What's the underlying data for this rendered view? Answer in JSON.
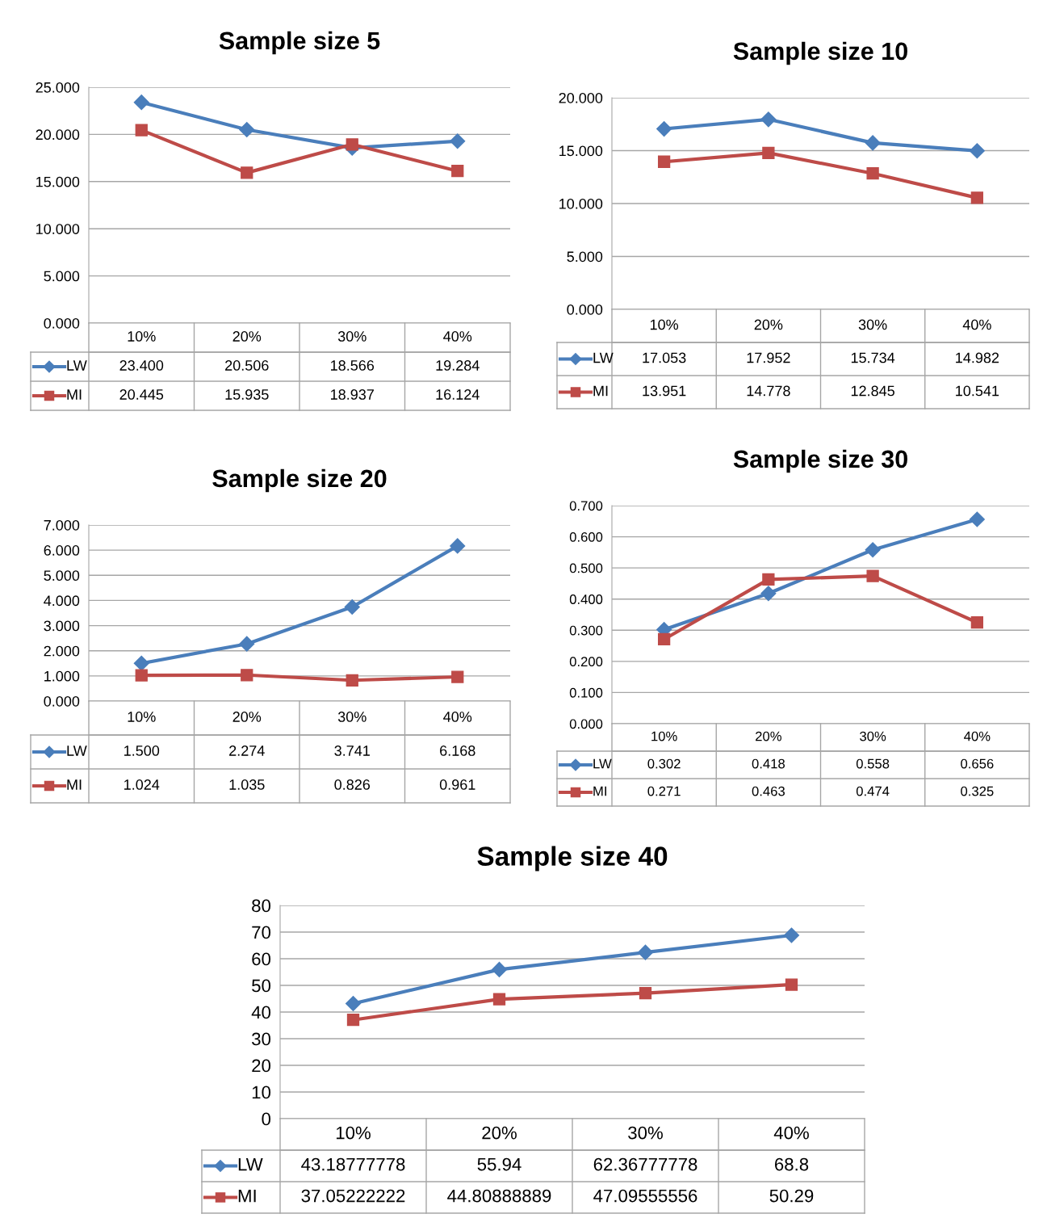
{
  "chart_data": [
    {
      "type": "line",
      "title": "Sample size 5",
      "categories": [
        "10%",
        "20%",
        "30%",
        "40%"
      ],
      "ylim": [
        0,
        25
      ],
      "yticks": [
        {
          "value": 0,
          "label": "0.000"
        },
        {
          "value": 5,
          "label": "5.000"
        },
        {
          "value": 10,
          "label": "10.000"
        },
        {
          "value": 15,
          "label": "15.000"
        },
        {
          "value": 20,
          "label": "20.000"
        },
        {
          "value": 25,
          "label": "25.000"
        }
      ],
      "grid": "y",
      "legend": "bottom",
      "series": [
        {
          "name": "LW",
          "color": "#4a7ebb",
          "marker": "diamond",
          "values": [
            23.4,
            20.506,
            18.566,
            19.284
          ],
          "value_labels": [
            "23.400",
            "20.506",
            "18.566",
            "19.284"
          ]
        },
        {
          "name": "MI",
          "color": "#be4b48",
          "marker": "square",
          "values": [
            20.445,
            15.935,
            18.937,
            16.124
          ],
          "value_labels": [
            "20.445",
            "15.935",
            "18.937",
            "16.124"
          ]
        }
      ]
    },
    {
      "type": "line",
      "title": "Sample size 10",
      "categories": [
        "10%",
        "20%",
        "30%",
        "40%"
      ],
      "ylim": [
        0,
        20
      ],
      "yticks": [
        {
          "value": 0,
          "label": "0.000"
        },
        {
          "value": 5,
          "label": "5.000"
        },
        {
          "value": 10,
          "label": "10.000"
        },
        {
          "value": 15,
          "label": "15.000"
        },
        {
          "value": 20,
          "label": "20.000"
        }
      ],
      "grid": "y",
      "legend": "bottom",
      "series": [
        {
          "name": "LW",
          "color": "#4a7ebb",
          "marker": "diamond",
          "values": [
            17.053,
            17.952,
            15.734,
            14.982
          ],
          "value_labels": [
            "17.053",
            "17.952",
            "15.734",
            "14.982"
          ]
        },
        {
          "name": "MI",
          "color": "#be4b48",
          "marker": "square",
          "values": [
            13.951,
            14.778,
            12.845,
            10.541
          ],
          "value_labels": [
            "13.951",
            "14.778",
            "12.845",
            "10.541"
          ]
        }
      ]
    },
    {
      "type": "line",
      "title": "Sample size 20",
      "categories": [
        "10%",
        "20%",
        "30%",
        "40%"
      ],
      "ylim": [
        0,
        7
      ],
      "yticks": [
        {
          "value": 0,
          "label": "0.000"
        },
        {
          "value": 1,
          "label": "1.000"
        },
        {
          "value": 2,
          "label": "2.000"
        },
        {
          "value": 3,
          "label": "3.000"
        },
        {
          "value": 4,
          "label": "4.000"
        },
        {
          "value": 5,
          "label": "5.000"
        },
        {
          "value": 6,
          "label": "6.000"
        },
        {
          "value": 7,
          "label": "7.000"
        }
      ],
      "grid": "y",
      "legend": "bottom",
      "series": [
        {
          "name": "LW",
          "color": "#4a7ebb",
          "marker": "diamond",
          "values": [
            1.5,
            2.274,
            3.741,
            6.168
          ],
          "value_labels": [
            "1.500",
            "2.274",
            "3.741",
            "6.168"
          ]
        },
        {
          "name": "MI",
          "color": "#be4b48",
          "marker": "square",
          "values": [
            1.024,
            1.035,
            0.826,
            0.961
          ],
          "value_labels": [
            "1.024",
            "1.035",
            "0.826",
            "0.961"
          ]
        }
      ]
    },
    {
      "type": "line",
      "title": "Sample size 30",
      "categories": [
        "10%",
        "20%",
        "30%",
        "40%"
      ],
      "ylim": [
        0,
        0.7
      ],
      "yticks": [
        {
          "value": 0,
          "label": "0.000"
        },
        {
          "value": 0.1,
          "label": "0.100"
        },
        {
          "value": 0.2,
          "label": "0.200"
        },
        {
          "value": 0.3,
          "label": "0.300"
        },
        {
          "value": 0.4,
          "label": "0.400"
        },
        {
          "value": 0.5,
          "label": "0.500"
        },
        {
          "value": 0.6,
          "label": "0.600"
        },
        {
          "value": 0.7,
          "label": "0.700"
        }
      ],
      "grid": "y",
      "legend": "bottom",
      "series": [
        {
          "name": "LW",
          "color": "#4a7ebb",
          "marker": "diamond",
          "values": [
            0.302,
            0.418,
            0.558,
            0.656
          ],
          "value_labels": [
            "0.302",
            "0.418",
            "0.558",
            "0.656"
          ]
        },
        {
          "name": "MI",
          "color": "#be4b48",
          "marker": "square",
          "values": [
            0.271,
            0.463,
            0.474,
            0.325
          ],
          "value_labels": [
            "0.271",
            "0.463",
            "0.474",
            "0.325"
          ]
        }
      ]
    },
    {
      "type": "line",
      "title": "Sample size 40",
      "categories": [
        "10%",
        "20%",
        "30%",
        "40%"
      ],
      "ylim": [
        0,
        80
      ],
      "yticks": [
        0,
        10,
        20,
        30,
        40,
        50,
        60,
        70,
        80
      ],
      "grid": "y",
      "legend": "bottom",
      "series": [
        {
          "name": "LW",
          "color": "#4a7ebb",
          "marker": "diamond",
          "values": [
            43.18777778,
            55.94,
            62.36777778,
            68.8
          ],
          "value_labels": [
            "43.18777778",
            "55.94",
            "62.36777778",
            "68.8"
          ]
        },
        {
          "name": "MI",
          "color": "#be4b48",
          "marker": "square",
          "values": [
            37.05222222,
            44.80888889,
            47.09555556,
            50.29
          ],
          "value_labels": [
            "37.05222222",
            "44.80888889",
            "47.09555556",
            "50.29"
          ]
        }
      ]
    }
  ]
}
